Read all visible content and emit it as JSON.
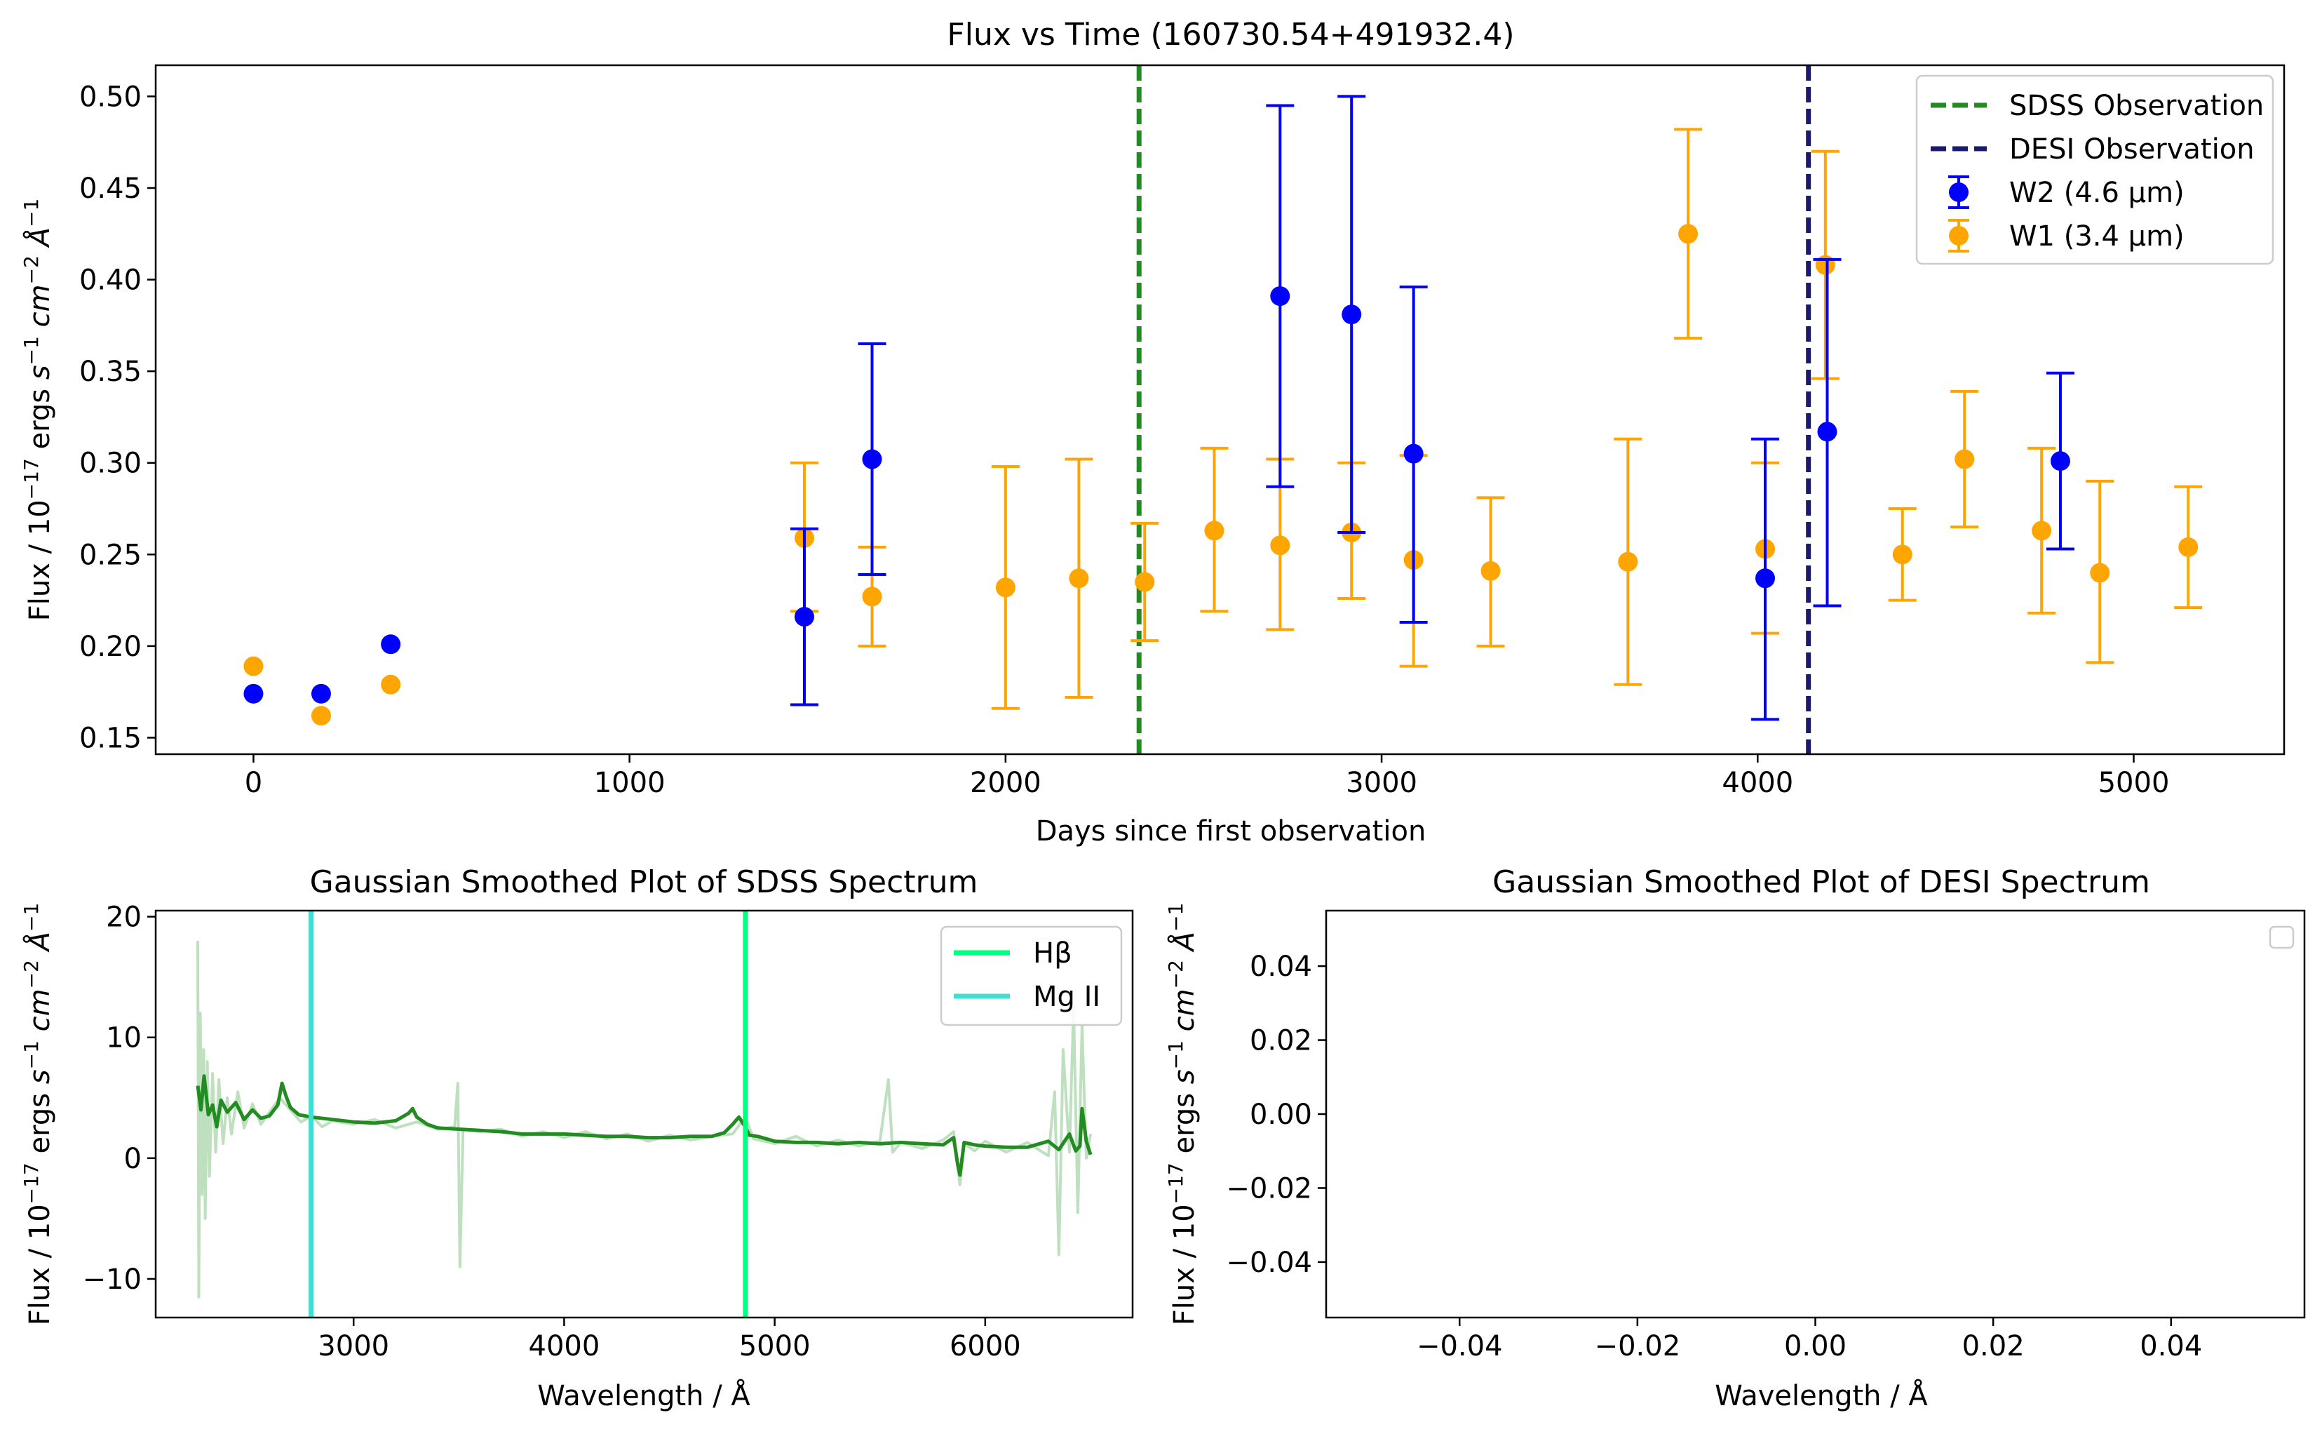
{
  "chart_data": [
    {
      "type": "scatter",
      "title": "Flux vs Time (160730.54+491932.4)",
      "xlabel": "Days since first observation",
      "ylabel_prefix": "Flux / 10",
      "ylabel_exp1": "−17",
      "ylabel_mid": " ergs ",
      "ylabel_exp2": "−1",
      "ylabel_cm": "cm",
      "ylabel_exp3": "−2",
      "ylabel_ang": "Å",
      "ylabel_exp4": "−1",
      "xlim": [
        -260,
        5400
      ],
      "ylim": [
        0.141,
        0.517
      ],
      "xticks": [
        0,
        1000,
        2000,
        3000,
        4000,
        5000
      ],
      "xtick_labels": [
        "0",
        "1000",
        "2000",
        "3000",
        "4000",
        "5000"
      ],
      "yticks": [
        0.15,
        0.2,
        0.25,
        0.3,
        0.35,
        0.4,
        0.45,
        0.5
      ],
      "ytick_labels": [
        "0.15",
        "0.20",
        "0.25",
        "0.30",
        "0.35",
        "0.40",
        "0.45",
        "0.50"
      ],
      "vlines": [
        {
          "name": "SDSS Observation",
          "x": 2355,
          "color": "#228b22"
        },
        {
          "name": "DESI Observation",
          "x": 4135,
          "color": "#191970"
        }
      ],
      "series": [
        {
          "name": "W2 (4.6 µm)",
          "color": "#0000ff",
          "x": [
            0,
            180,
            365,
            1465,
            1645,
            2730,
            2920,
            3085,
            4020,
            4185,
            4805
          ],
          "y": [
            0.174,
            0.174,
            0.201,
            0.216,
            0.302,
            0.391,
            0.381,
            0.305,
            0.237,
            0.317,
            0.301
          ],
          "yerr_low": [
            null,
            null,
            null,
            0.168,
            0.239,
            0.287,
            0.262,
            0.213,
            0.16,
            0.222,
            0.253
          ],
          "yerr_high": [
            null,
            null,
            null,
            0.264,
            0.365,
            0.495,
            0.5,
            0.396,
            0.313,
            0.411,
            0.349
          ]
        },
        {
          "name": "W1 (3.4 µm)",
          "color": "#ffa500",
          "x": [
            0,
            180,
            365,
            1465,
            1645,
            2000,
            2195,
            2370,
            2555,
            2730,
            2920,
            3085,
            3290,
            3655,
            3815,
            4020,
            4180,
            4385,
            4550,
            4755,
            4910,
            5145
          ],
          "y": [
            0.189,
            0.162,
            0.179,
            0.259,
            0.227,
            0.232,
            0.237,
            0.235,
            0.263,
            0.255,
            0.262,
            0.247,
            0.241,
            0.246,
            0.425,
            0.253,
            0.408,
            0.25,
            0.302,
            0.263,
            0.24,
            0.254
          ],
          "yerr_low": [
            null,
            null,
            null,
            0.219,
            0.2,
            0.166,
            0.172,
            0.203,
            0.219,
            0.209,
            0.226,
            0.189,
            0.2,
            0.179,
            0.368,
            0.207,
            0.346,
            0.225,
            0.265,
            0.218,
            0.191,
            0.221
          ],
          "yerr_high": [
            null,
            null,
            null,
            0.3,
            0.254,
            0.298,
            0.302,
            0.267,
            0.308,
            0.302,
            0.3,
            0.304,
            0.281,
            0.313,
            0.482,
            0.3,
            0.47,
            0.275,
            0.339,
            0.308,
            0.29,
            0.287
          ]
        }
      ],
      "legend": {
        "placement": "top-right",
        "entries": [
          "SDSS Observation",
          "DESI Observation",
          "W2 (4.6 µm)",
          "W1 (3.4 µm)"
        ]
      },
      "grid": false
    },
    {
      "type": "line",
      "title": "Gaussian Smoothed Plot of SDSS Spectrum",
      "xlabel": "Wavelength / Å",
      "xlim": [
        2060,
        6700
      ],
      "ylim": [
        -13.2,
        20.5
      ],
      "xticks": [
        3000,
        4000,
        5000,
        6000
      ],
      "xtick_labels": [
        "3000",
        "4000",
        "5000",
        "6000"
      ],
      "yticks": [
        -10,
        0,
        10,
        20
      ],
      "ytick_labels": [
        "−10",
        "0",
        "10",
        "20"
      ],
      "smoothed_color": "#228b22",
      "raw_color": "#a8d5a8",
      "smoothed_x": [
        2260,
        2275,
        2290,
        2310,
        2330,
        2350,
        2370,
        2400,
        2440,
        2480,
        2520,
        2560,
        2600,
        2640,
        2660,
        2680,
        2700,
        2740,
        2800,
        2900,
        3000,
        3100,
        3200,
        3260,
        3280,
        3300,
        3350,
        3400,
        3500,
        3600,
        3700,
        3800,
        3900,
        4000,
        4100,
        4200,
        4300,
        4400,
        4500,
        4600,
        4700,
        4760,
        4800,
        4830,
        4860,
        4880,
        4920,
        5000,
        5100,
        5200,
        5300,
        5400,
        5500,
        5600,
        5700,
        5800,
        5850,
        5870,
        5880,
        5900,
        5950,
        6000,
        6100,
        6200,
        6300,
        6350,
        6400,
        6430,
        6450,
        6460,
        6480,
        6500
      ],
      "smoothed_y": [
        6.0,
        4.0,
        6.8,
        3.6,
        4.4,
        2.6,
        4.8,
        3.8,
        4.6,
        3.2,
        4.0,
        3.3,
        3.5,
        4.4,
        6.2,
        5.1,
        4.2,
        3.6,
        3.4,
        3.2,
        3.0,
        2.9,
        3.1,
        3.7,
        4.1,
        3.4,
        2.8,
        2.5,
        2.4,
        2.3,
        2.2,
        2.0,
        2.0,
        2.0,
        1.9,
        1.8,
        1.8,
        1.7,
        1.7,
        1.8,
        1.8,
        2.1,
        2.8,
        3.4,
        2.6,
        1.9,
        1.8,
        1.4,
        1.3,
        1.3,
        1.2,
        1.3,
        1.2,
        1.3,
        1.2,
        1.1,
        1.7,
        -0.6,
        -1.4,
        1.3,
        1.1,
        1.0,
        0.9,
        0.9,
        1.4,
        0.7,
        2.0,
        0.6,
        1.0,
        4.1,
        1.4,
        0.3
      ],
      "raw_x": [
        2260,
        2265,
        2272,
        2280,
        2288,
        2295,
        2305,
        2315,
        2330,
        2345,
        2360,
        2380,
        2400,
        2420,
        2450,
        2480,
        2520,
        2560,
        2600,
        2650,
        2700,
        2750,
        2800,
        2850,
        2900,
        3000,
        3100,
        3200,
        3300,
        3400,
        3480,
        3495,
        3505,
        3520,
        3600,
        3700,
        3800,
        3900,
        4000,
        4100,
        4200,
        4300,
        4400,
        4500,
        4600,
        4700,
        4800,
        4860,
        4900,
        5000,
        5100,
        5200,
        5300,
        5400,
        5500,
        5540,
        5560,
        5600,
        5700,
        5800,
        5850,
        5880,
        5900,
        5950,
        6000,
        6100,
        6200,
        6300,
        6330,
        6350,
        6370,
        6400,
        6420,
        6440,
        6460,
        6480,
        6500
      ],
      "raw_y": [
        18.0,
        -11.5,
        12.0,
        -3.0,
        9.0,
        -5.0,
        8.0,
        -1.5,
        7.0,
        0.5,
        6.5,
        1.2,
        5.0,
        2.0,
        5.5,
        2.5,
        4.5,
        2.8,
        3.8,
        5.0,
        4.0,
        3.0,
        3.5,
        2.6,
        3.1,
        2.8,
        3.2,
        2.5,
        3.0,
        2.4,
        2.6,
        6.2,
        -9.0,
        2.4,
        2.2,
        2.4,
        1.8,
        2.2,
        1.7,
        2.2,
        1.6,
        2.0,
        1.4,
        1.9,
        1.5,
        1.8,
        2.0,
        3.4,
        1.6,
        1.2,
        1.8,
        1.0,
        1.5,
        1.0,
        1.4,
        6.5,
        0.5,
        1.3,
        0.8,
        1.5,
        2.2,
        -2.2,
        1.2,
        0.6,
        1.4,
        0.5,
        1.3,
        0.2,
        5.5,
        -8.0,
        9.0,
        0.5,
        12.5,
        -4.5,
        11.0,
        0.0,
        2.0
      ],
      "lines": [
        {
          "name": "Hβ",
          "x": 4861,
          "color": "#00ff7f"
        },
        {
          "name": "Mg II",
          "x": 2798,
          "color": "#40e0d0"
        }
      ],
      "legend": {
        "placement": "top-right",
        "entries": [
          "Hβ",
          "Mg II"
        ]
      }
    },
    {
      "type": "line",
      "title": "Gaussian Smoothed Plot of DESI Spectrum",
      "xlabel": "Wavelength / Å",
      "xlim": [
        -0.055,
        0.055
      ],
      "ylim": [
        -0.055,
        0.055
      ],
      "xticks": [
        -0.04,
        -0.02,
        0.0,
        0.02,
        0.04
      ],
      "xtick_labels": [
        "−0.04",
        "−0.02",
        "0.00",
        "0.02",
        "0.04"
      ],
      "yticks": [
        -0.04,
        -0.02,
        0.0,
        0.02,
        0.04
      ],
      "ytick_labels": [
        "−0.04",
        "−0.02",
        "0.00",
        "0.02",
        "0.04"
      ],
      "series": [],
      "legend": {
        "placement": "top-right",
        "entries": []
      }
    }
  ]
}
